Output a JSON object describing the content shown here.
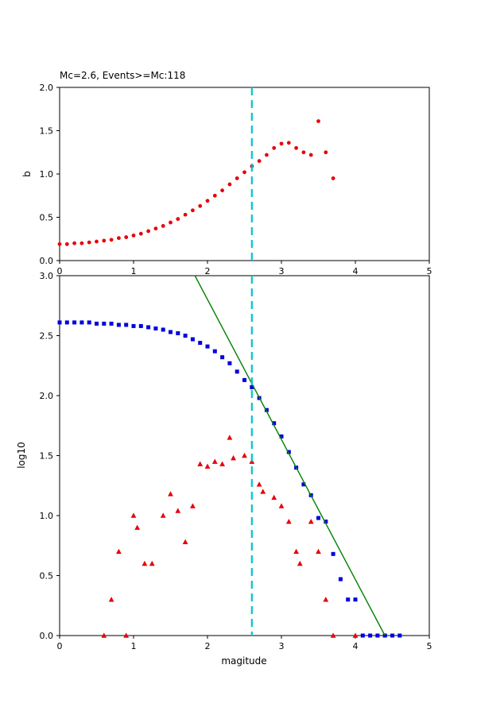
{
  "colors": {
    "red": "#e8000b",
    "blue": "#0000dd",
    "green": "#008000",
    "cyan": "#00c5cd",
    "axis": "#000000",
    "background": "#ffffff"
  },
  "chart_data": [
    {
      "type": "scatter",
      "title": "Mc=2.6, Events>=Mc:118",
      "xlabel": "",
      "ylabel": "b",
      "xlim": [
        0,
        5
      ],
      "ylim": [
        0,
        2
      ],
      "xticks": [
        0,
        1,
        2,
        3,
        4,
        5
      ],
      "yticks": [
        0,
        0.5,
        1.0,
        1.5,
        2.0
      ],
      "grid": false,
      "legend": "none",
      "vline": {
        "x": 2.6,
        "color": "cyan",
        "style": "dashed"
      },
      "series": [
        {
          "name": "b-value-dots",
          "marker": "dot",
          "color": "red",
          "x": [
            0.0,
            0.1,
            0.2,
            0.3,
            0.4,
            0.5,
            0.6,
            0.7,
            0.8,
            0.9,
            1.0,
            1.1,
            1.2,
            1.3,
            1.4,
            1.5,
            1.6,
            1.7,
            1.8,
            1.9,
            2.0,
            2.1,
            2.2,
            2.3,
            2.4,
            2.5,
            2.6,
            2.7,
            2.8,
            2.9,
            3.0,
            3.1,
            3.2,
            3.3,
            3.4,
            3.5,
            3.6,
            3.7
          ],
          "y": [
            0.19,
            0.19,
            0.2,
            0.2,
            0.21,
            0.22,
            0.23,
            0.24,
            0.26,
            0.27,
            0.29,
            0.31,
            0.34,
            0.37,
            0.4,
            0.44,
            0.48,
            0.53,
            0.58,
            0.63,
            0.69,
            0.75,
            0.81,
            0.88,
            0.95,
            1.02,
            1.09,
            1.15,
            1.22,
            1.3,
            1.35,
            1.36,
            1.3,
            1.25,
            1.22,
            1.61,
            1.25,
            0.95
          ]
        }
      ]
    },
    {
      "type": "scatter",
      "title": "",
      "xlabel": "magitude",
      "ylabel": "log10",
      "xlim": [
        0,
        5
      ],
      "ylim": [
        0,
        3
      ],
      "xticks": [
        0,
        1,
        2,
        3,
        4,
        5
      ],
      "yticks": [
        0,
        0.5,
        1.0,
        1.5,
        2.0,
        2.5,
        3.0
      ],
      "grid": false,
      "legend": "none",
      "vline": {
        "x": 2.6,
        "color": "cyan",
        "style": "dashed"
      },
      "series": [
        {
          "name": "cumulative-count-squares",
          "marker": "square",
          "color": "blue",
          "x": [
            0.0,
            0.1,
            0.2,
            0.3,
            0.4,
            0.5,
            0.6,
            0.7,
            0.8,
            0.9,
            1.0,
            1.1,
            1.2,
            1.3,
            1.4,
            1.5,
            1.6,
            1.7,
            1.8,
            1.9,
            2.0,
            2.1,
            2.2,
            2.3,
            2.4,
            2.5,
            2.6,
            2.7,
            2.8,
            2.9,
            3.0,
            3.1,
            3.2,
            3.3,
            3.4,
            3.5,
            3.6,
            3.7,
            3.8,
            3.9,
            4.0,
            4.1,
            4.2,
            4.3,
            4.4,
            4.5,
            4.6
          ],
          "y": [
            2.61,
            2.61,
            2.61,
            2.61,
            2.61,
            2.6,
            2.6,
            2.6,
            2.59,
            2.59,
            2.58,
            2.58,
            2.57,
            2.56,
            2.55,
            2.53,
            2.52,
            2.5,
            2.47,
            2.44,
            2.41,
            2.37,
            2.32,
            2.27,
            2.2,
            2.13,
            2.07,
            1.98,
            1.88,
            1.77,
            1.66,
            1.53,
            1.4,
            1.26,
            1.17,
            0.98,
            0.95,
            0.68,
            0.47,
            0.3,
            0.3,
            0.0,
            0.0,
            0.0,
            0.0,
            0.0,
            0.0
          ]
        },
        {
          "name": "noncumulative-count-triangles",
          "marker": "triangle",
          "color": "red",
          "x": [
            0.6,
            0.7,
            0.8,
            0.9,
            1.0,
            1.05,
            1.15,
            1.25,
            1.4,
            1.5,
            1.6,
            1.7,
            1.8,
            1.9,
            2.0,
            2.1,
            2.2,
            2.3,
            2.35,
            2.5,
            2.6,
            2.7,
            2.75,
            2.9,
            3.0,
            3.1,
            3.2,
            3.25,
            3.4,
            3.5,
            3.6,
            3.7,
            4.0
          ],
          "y": [
            0.0,
            0.3,
            0.7,
            0.0,
            1.0,
            0.9,
            0.6,
            0.6,
            1.0,
            1.18,
            1.04,
            0.78,
            1.08,
            1.43,
            1.41,
            1.45,
            1.43,
            1.65,
            1.48,
            1.5,
            1.45,
            1.26,
            1.2,
            1.15,
            1.08,
            0.95,
            0.7,
            0.6,
            0.95,
            0.7,
            0.3,
            0.0,
            0.0
          ]
        },
        {
          "name": "gutenberg-richter-fit-line",
          "marker": "line",
          "color": "green",
          "x": [
            1.83,
            4.4
          ],
          "y": [
            3.0,
            0.0
          ]
        }
      ]
    }
  ]
}
